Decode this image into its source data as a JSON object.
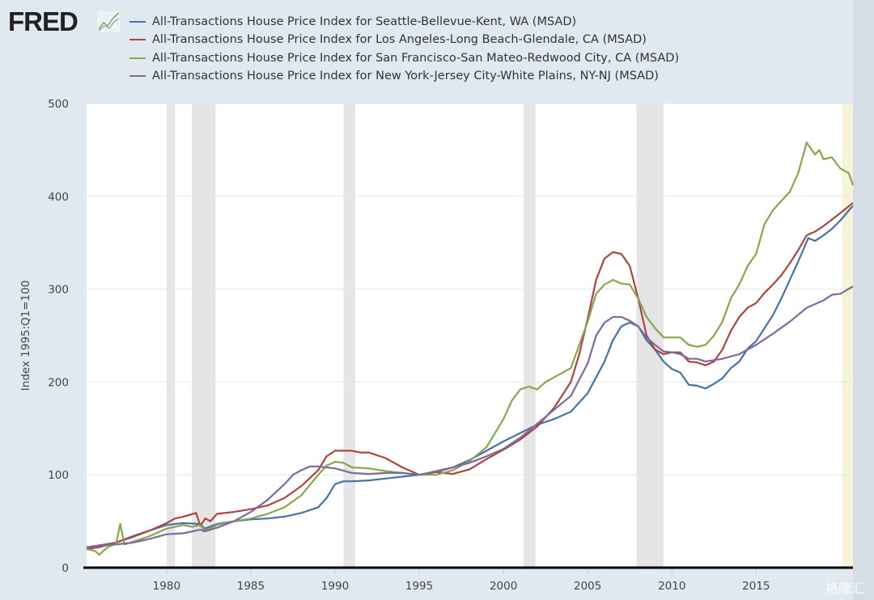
{
  "logo": {
    "text": "FRED"
  },
  "watermark": "格隆汇",
  "chart_data": {
    "type": "line",
    "title": "",
    "xlabel": "",
    "ylabel": "Index 1995:Q1=100",
    "xlim": [
      1975.25,
      2020.75
    ],
    "ylim": [
      0,
      500
    ],
    "yticks": [
      0,
      100,
      200,
      300,
      400,
      500
    ],
    "xticks": [
      1980,
      1985,
      1990,
      1995,
      2000,
      2005,
      2010,
      2015
    ],
    "grid": "horizontal",
    "legend_placement": "top",
    "recessions": [
      [
        1980.0,
        1980.5
      ],
      [
        1981.5,
        1982.9
      ],
      [
        1990.5,
        1991.2
      ],
      [
        2001.2,
        2001.9
      ],
      [
        2007.9,
        2009.5
      ]
    ],
    "recession_color": "#e5e5e5",
    "current_recession": [
      2020.1,
      2020.75
    ],
    "current_recession_color": "#f5f3d9",
    "series": [
      {
        "name": "All-Transactions House Price Index for Seattle-Bellevue-Kent, WA (MSAD)",
        "color": "#4572a7",
        "points": [
          [
            1975.25,
            21
          ],
          [
            1975.5,
            22
          ],
          [
            1976,
            24
          ],
          [
            1977,
            27
          ],
          [
            1978,
            33
          ],
          [
            1979,
            40
          ],
          [
            1980,
            46
          ],
          [
            1981,
            48
          ],
          [
            1982,
            47
          ],
          [
            1982.25,
            42
          ],
          [
            1983,
            47
          ],
          [
            1984,
            50
          ],
          [
            1985,
            52
          ],
          [
            1986,
            53
          ],
          [
            1987,
            55
          ],
          [
            1988,
            59
          ],
          [
            1989,
            65
          ],
          [
            1989.5,
            75
          ],
          [
            1990,
            90
          ],
          [
            1990.5,
            93
          ],
          [
            1991,
            93
          ],
          [
            1992,
            94
          ],
          [
            1993,
            96
          ],
          [
            1994,
            98
          ],
          [
            1995,
            100
          ],
          [
            1996,
            103
          ],
          [
            1997,
            108
          ],
          [
            1998,
            116
          ],
          [
            1999,
            126
          ],
          [
            2000,
            136
          ],
          [
            2001,
            145
          ],
          [
            2002,
            154
          ],
          [
            2003,
            160
          ],
          [
            2004,
            168
          ],
          [
            2005,
            188
          ],
          [
            2006,
            222
          ],
          [
            2006.5,
            245
          ],
          [
            2007,
            260
          ],
          [
            2007.5,
            264
          ],
          [
            2008,
            260
          ],
          [
            2008.5,
            245
          ],
          [
            2009,
            235
          ],
          [
            2009.5,
            222
          ],
          [
            2010,
            214
          ],
          [
            2010.5,
            210
          ],
          [
            2011,
            197
          ],
          [
            2011.5,
            196
          ],
          [
            2012,
            193
          ],
          [
            2012.5,
            198
          ],
          [
            2013,
            204
          ],
          [
            2013.5,
            215
          ],
          [
            2014,
            222
          ],
          [
            2014.5,
            236
          ],
          [
            2015,
            244
          ],
          [
            2015.5,
            258
          ],
          [
            2016,
            272
          ],
          [
            2016.5,
            290
          ],
          [
            2017,
            310
          ],
          [
            2017.5,
            330
          ],
          [
            2018.1,
            355
          ],
          [
            2018.5,
            352
          ],
          [
            2019,
            358
          ],
          [
            2019.5,
            365
          ],
          [
            2020,
            374
          ],
          [
            2020.75,
            390
          ]
        ]
      },
      {
        "name": "All-Transactions House Price Index for Los Angeles-Long Beach-Glendale, CA (MSAD)",
        "color": "#aa4643",
        "points": [
          [
            1975.25,
            20
          ],
          [
            1976,
            22
          ],
          [
            1977,
            27
          ],
          [
            1978,
            34
          ],
          [
            1979,
            40
          ],
          [
            1980,
            48
          ],
          [
            1980.5,
            53
          ],
          [
            1981,
            55
          ],
          [
            1981.75,
            59
          ],
          [
            1982,
            45
          ],
          [
            1982.3,
            53
          ],
          [
            1982.6,
            50
          ],
          [
            1983,
            58
          ],
          [
            1984,
            60
          ],
          [
            1985,
            63
          ],
          [
            1986,
            67
          ],
          [
            1987,
            75
          ],
          [
            1988,
            88
          ],
          [
            1989,
            105
          ],
          [
            1989.5,
            120
          ],
          [
            1990,
            126
          ],
          [
            1991,
            126
          ],
          [
            1991.5,
            124
          ],
          [
            1992,
            124
          ],
          [
            1993,
            118
          ],
          [
            1994,
            108
          ],
          [
            1995,
            100
          ],
          [
            1996,
            103
          ],
          [
            1997,
            101
          ],
          [
            1998,
            106
          ],
          [
            1999,
            117
          ],
          [
            2000,
            127
          ],
          [
            2001,
            138
          ],
          [
            2002,
            152
          ],
          [
            2003,
            172
          ],
          [
            2004,
            200
          ],
          [
            2004.5,
            230
          ],
          [
            2005,
            268
          ],
          [
            2005.5,
            310
          ],
          [
            2006,
            333
          ],
          [
            2006.5,
            340
          ],
          [
            2007,
            338
          ],
          [
            2007.5,
            325
          ],
          [
            2008,
            290
          ],
          [
            2008.5,
            250
          ],
          [
            2009,
            235
          ],
          [
            2009.5,
            230
          ],
          [
            2010,
            232
          ],
          [
            2010.5,
            232
          ],
          [
            2011,
            222
          ],
          [
            2011.5,
            221
          ],
          [
            2012,
            218
          ],
          [
            2012.5,
            222
          ],
          [
            2013,
            235
          ],
          [
            2013.5,
            255
          ],
          [
            2014,
            270
          ],
          [
            2014.5,
            280
          ],
          [
            2015,
            285
          ],
          [
            2015.5,
            296
          ],
          [
            2016,
            305
          ],
          [
            2016.5,
            315
          ],
          [
            2017,
            328
          ],
          [
            2017.5,
            342
          ],
          [
            2018,
            358
          ],
          [
            2018.5,
            362
          ],
          [
            2019,
            368
          ],
          [
            2019.5,
            375
          ],
          [
            2020,
            382
          ],
          [
            2020.75,
            393
          ]
        ]
      },
      {
        "name": "All-Transactions House Price Index for San Francisco-San Mateo-Redwood City, CA (MSAD)",
        "color": "#89a54e",
        "points": [
          [
            1975.25,
            20
          ],
          [
            1975.75,
            18
          ],
          [
            1976,
            14
          ],
          [
            1976.5,
            22
          ],
          [
            1977,
            26
          ],
          [
            1977.25,
            47
          ],
          [
            1977.5,
            25
          ],
          [
            1978,
            28
          ],
          [
            1979,
            34
          ],
          [
            1980,
            42
          ],
          [
            1981,
            46
          ],
          [
            1981.5,
            44
          ],
          [
            1982,
            46
          ],
          [
            1982.25,
            40
          ],
          [
            1983,
            46
          ],
          [
            1984,
            50
          ],
          [
            1985,
            53
          ],
          [
            1986,
            58
          ],
          [
            1987,
            65
          ],
          [
            1988,
            78
          ],
          [
            1989,
            100
          ],
          [
            1989.5,
            110
          ],
          [
            1990,
            114
          ],
          [
            1990.5,
            113
          ],
          [
            1991,
            108
          ],
          [
            1992,
            107
          ],
          [
            1993,
            104
          ],
          [
            1994,
            102
          ],
          [
            1995,
            100
          ],
          [
            1996,
            100
          ],
          [
            1997,
            105
          ],
          [
            1998,
            115
          ],
          [
            1999,
            130
          ],
          [
            2000,
            160
          ],
          [
            2000.5,
            180
          ],
          [
            2001,
            192
          ],
          [
            2001.5,
            195
          ],
          [
            2002,
            192
          ],
          [
            2002.5,
            200
          ],
          [
            2003,
            205
          ],
          [
            2004,
            215
          ],
          [
            2004.5,
            240
          ],
          [
            2005,
            265
          ],
          [
            2005.5,
            295
          ],
          [
            2006,
            305
          ],
          [
            2006.5,
            310
          ],
          [
            2007,
            306
          ],
          [
            2007.5,
            305
          ],
          [
            2008,
            290
          ],
          [
            2008.5,
            270
          ],
          [
            2009,
            258
          ],
          [
            2009.5,
            248
          ],
          [
            2010,
            248
          ],
          [
            2010.5,
            248
          ],
          [
            2011,
            240
          ],
          [
            2011.5,
            238
          ],
          [
            2012,
            240
          ],
          [
            2012.5,
            250
          ],
          [
            2013,
            265
          ],
          [
            2013.5,
            290
          ],
          [
            2014,
            305
          ],
          [
            2014.5,
            325
          ],
          [
            2015,
            338
          ],
          [
            2015.5,
            370
          ],
          [
            2016,
            385
          ],
          [
            2016.5,
            395
          ],
          [
            2017,
            405
          ],
          [
            2017.5,
            425
          ],
          [
            2018,
            458
          ],
          [
            2018.5,
            445
          ],
          [
            2018.75,
            450
          ],
          [
            2019,
            440
          ],
          [
            2019.5,
            442
          ],
          [
            2020,
            430
          ],
          [
            2020.5,
            425
          ],
          [
            2020.75,
            412
          ]
        ]
      },
      {
        "name": "All-Transactions House Price Index for New York-Jersey City-White Plains, NY-NJ (MSAD)",
        "color": "#80699b",
        "points": [
          [
            1975.25,
            22
          ],
          [
            1976,
            24
          ],
          [
            1977,
            25
          ],
          [
            1978,
            27
          ],
          [
            1979,
            31
          ],
          [
            1980,
            36
          ],
          [
            1981,
            37
          ],
          [
            1982,
            41
          ],
          [
            1982.25,
            39
          ],
          [
            1983,
            43
          ],
          [
            1984,
            50
          ],
          [
            1985,
            60
          ],
          [
            1986,
            73
          ],
          [
            1987,
            90
          ],
          [
            1987.5,
            100
          ],
          [
            1988,
            105
          ],
          [
            1988.5,
            109
          ],
          [
            1989,
            109
          ],
          [
            1990,
            107
          ],
          [
            1991,
            102
          ],
          [
            1992,
            101
          ],
          [
            1993,
            102
          ],
          [
            1994,
            102
          ],
          [
            1995,
            100
          ],
          [
            1996,
            104
          ],
          [
            1997,
            108
          ],
          [
            1998,
            113
          ],
          [
            1999,
            120
          ],
          [
            2000,
            128
          ],
          [
            2001,
            140
          ],
          [
            2002,
            155
          ],
          [
            2003,
            170
          ],
          [
            2004,
            185
          ],
          [
            2005,
            220
          ],
          [
            2005.5,
            250
          ],
          [
            2006,
            264
          ],
          [
            2006.5,
            270
          ],
          [
            2007,
            270
          ],
          [
            2007.5,
            266
          ],
          [
            2008,
            260
          ],
          [
            2008.5,
            248
          ],
          [
            2009,
            240
          ],
          [
            2009.5,
            233
          ],
          [
            2010,
            232
          ],
          [
            2010.5,
            230
          ],
          [
            2011,
            225
          ],
          [
            2011.5,
            225
          ],
          [
            2012,
            222
          ],
          [
            2013,
            225
          ],
          [
            2014,
            230
          ],
          [
            2015,
            240
          ],
          [
            2016,
            252
          ],
          [
            2017,
            265
          ],
          [
            2018,
            280
          ],
          [
            2019,
            288
          ],
          [
            2019.5,
            294
          ],
          [
            2020,
            295
          ],
          [
            2020.75,
            303
          ]
        ]
      }
    ]
  }
}
